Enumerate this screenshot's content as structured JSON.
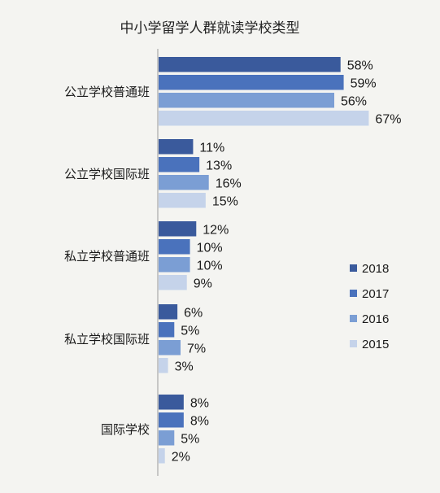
{
  "chart_data": {
    "type": "bar",
    "orientation": "horizontal",
    "title": "中小学留学人群就读学校类型",
    "categories": [
      "公立学校普通班",
      "公立学校国际班",
      "私立学校普通班",
      "私立学校国际班",
      "国际学校"
    ],
    "series": [
      {
        "name": "2018",
        "color": "#3a5a9c",
        "values": [
          58,
          11,
          12,
          6,
          8
        ],
        "labels": [
          "58%",
          "11%",
          "12%",
          "6%",
          "8%"
        ]
      },
      {
        "name": "2017",
        "color": "#4a72bc",
        "values": [
          59,
          13,
          10,
          5,
          8
        ],
        "labels": [
          "59%",
          "13%",
          "10%",
          "5%",
          "8%"
        ]
      },
      {
        "name": "2016",
        "color": "#7b9ed4",
        "values": [
          56,
          16,
          10,
          7,
          5
        ],
        "labels": [
          "56%",
          "16%",
          "10%",
          "7%",
          "5%"
        ]
      },
      {
        "name": "2015",
        "color": "#c5d3ea",
        "values": [
          67,
          15,
          9,
          3,
          2
        ],
        "labels": [
          "67%",
          "15%",
          "9%",
          "3%",
          "2%"
        ]
      }
    ],
    "xlim": [
      0,
      70
    ],
    "legend": "right",
    "grid": false
  }
}
